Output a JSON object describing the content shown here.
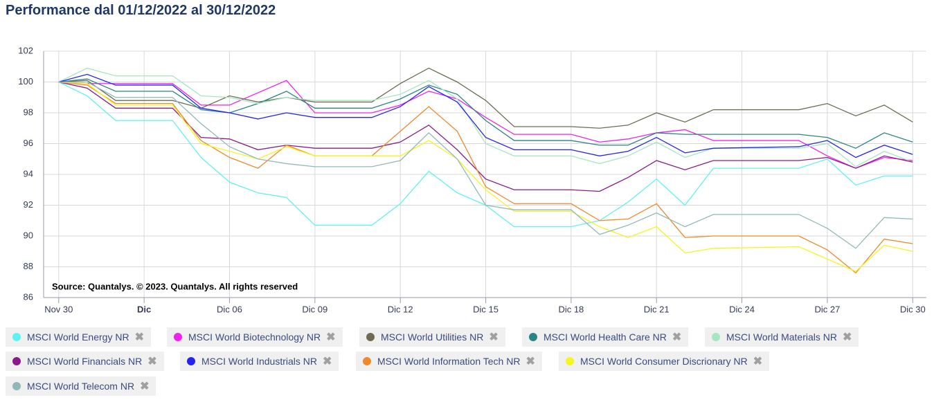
{
  "chart_data": {
    "type": "line",
    "title": "Performance dal 01/12/2022 al 30/12/2022",
    "annotation": "Source: Quantalys. © 2023. Quantalys. All rights reserved",
    "x": [
      0,
      1,
      2,
      4,
      5,
      6,
      7,
      8,
      9,
      11,
      12,
      13,
      14,
      15,
      16,
      18,
      19,
      20,
      21,
      22,
      23,
      26,
      27,
      28,
      29,
      30
    ],
    "xlim": [
      -0.53,
      30.48
    ],
    "xticks": [
      {
        "value": 0,
        "label": "Nov 30"
      },
      {
        "value": 3,
        "label": "Dic"
      },
      {
        "value": 6,
        "label": "Dic 06"
      },
      {
        "value": 9,
        "label": "Dic 09"
      },
      {
        "value": 12,
        "label": "Dic 12"
      },
      {
        "value": 15,
        "label": "Dic 15"
      },
      {
        "value": 18,
        "label": "Dic 18"
      },
      {
        "value": 21,
        "label": "Dic 21"
      },
      {
        "value": 24,
        "label": "Dic 24"
      },
      {
        "value": 27,
        "label": "Dic 27"
      },
      {
        "value": 30,
        "label": "Dic 30"
      }
    ],
    "ylim": [
      86,
      102
    ],
    "yticks": [
      86,
      88,
      90,
      92,
      94,
      96,
      98,
      100,
      102
    ],
    "grid": true,
    "series": [
      {
        "name": "MSCI World Energy NR",
        "color": "#5ff2f2",
        "values": [
          100,
          99.1,
          97.5,
          97.5,
          95.1,
          93.5,
          92.8,
          92.5,
          90.7,
          90.7,
          92.1,
          94.2,
          92.8,
          92.0,
          90.6,
          90.6,
          91.0,
          92.2,
          93.7,
          92.0,
          94.4,
          94.4,
          95.0,
          93.3,
          93.9,
          93.9
        ]
      },
      {
        "name": "MSCI World Biotechnology NR",
        "color": "#f020f0",
        "values": [
          100,
          99.9,
          99.9,
          99.9,
          98.5,
          98.5,
          99.3,
          100.1,
          98.0,
          98.0,
          98.5,
          99.4,
          98.9,
          97.7,
          96.6,
          96.6,
          96.1,
          96.3,
          96.7,
          96.9,
          96.2,
          96.2,
          95.2,
          94.4,
          95.1,
          94.9
        ]
      },
      {
        "name": "MSCI World Utilities NR",
        "color": "#6e6b52",
        "values": [
          100,
          100.1,
          98.8,
          98.8,
          98.3,
          99.1,
          98.7,
          99.0,
          98.7,
          98.7,
          99.9,
          100.9,
          100.0,
          98.8,
          97.1,
          97.1,
          97.0,
          97.2,
          98.0,
          97.4,
          98.2,
          98.2,
          98.6,
          97.8,
          98.5,
          97.4
        ]
      },
      {
        "name": "MSCI World Health Care NR",
        "color": "#2a8585",
        "values": [
          100,
          100.2,
          99.4,
          99.4,
          98.2,
          98.0,
          98.6,
          99.4,
          98.3,
          98.3,
          98.9,
          99.8,
          99.2,
          97.5,
          96.2,
          96.2,
          95.9,
          95.9,
          96.7,
          96.6,
          96.6,
          96.6,
          96.4,
          95.7,
          96.7,
          96.1
        ]
      },
      {
        "name": "MSCI World Materials NR",
        "color": "#a6e6c2",
        "values": [
          100,
          100.9,
          100.4,
          100.4,
          99.1,
          99.0,
          98.6,
          99.0,
          98.8,
          98.8,
          99.2,
          100.1,
          98.9,
          96.0,
          95.2,
          95.2,
          94.7,
          95.2,
          96.1,
          95.1,
          95.7,
          95.7,
          96.0,
          94.5,
          95.5,
          94.8
        ]
      },
      {
        "name": "MSCI World Financials NR",
        "color": "#8a1a8a",
        "values": [
          100,
          99.6,
          98.3,
          98.3,
          96.4,
          96.3,
          95.6,
          95.9,
          95.7,
          95.7,
          96.1,
          97.2,
          95.6,
          93.7,
          93.0,
          93.0,
          92.9,
          93.8,
          94.9,
          94.3,
          94.9,
          94.9,
          95.1,
          94.4,
          95.2,
          94.8
        ]
      },
      {
        "name": "MSCI World Industrials NR",
        "color": "#2424ee",
        "values": [
          100,
          100.5,
          99.8,
          99.8,
          98.3,
          98.0,
          97.6,
          98.0,
          97.7,
          97.7,
          98.4,
          99.7,
          98.7,
          96.4,
          95.6,
          95.6,
          95.2,
          95.5,
          96.4,
          95.4,
          95.7,
          95.8,
          96.2,
          95.1,
          95.9,
          95.3
        ]
      },
      {
        "name": "MSCI World Information Tech NR",
        "color": "#f0882c",
        "values": [
          100,
          99.8,
          98.6,
          98.6,
          96.2,
          95.1,
          94.4,
          95.9,
          95.2,
          95.2,
          96.8,
          98.4,
          96.8,
          93.2,
          92.1,
          92.1,
          91.0,
          91.1,
          92.1,
          89.9,
          90.0,
          90.0,
          89.1,
          87.6,
          89.8,
          89.5
        ]
      },
      {
        "name": "MSCI World Consumer Discrionary NR",
        "color": "#f5f520",
        "values": [
          100,
          99.9,
          98.5,
          98.5,
          96.0,
          95.5,
          95.0,
          95.8,
          95.2,
          95.2,
          95.2,
          96.2,
          95.0,
          93.0,
          91.6,
          91.6,
          90.6,
          89.9,
          90.6,
          88.9,
          89.2,
          89.3,
          88.5,
          87.7,
          89.4,
          89.0
        ]
      },
      {
        "name": "MSCI World Telecom NR",
        "color": "#92b8b8",
        "values": [
          100,
          100.0,
          99.0,
          99.0,
          97.3,
          95.8,
          95.0,
          94.7,
          94.5,
          94.5,
          94.9,
          96.7,
          95.0,
          92.0,
          91.7,
          91.7,
          90.1,
          90.7,
          91.5,
          90.6,
          91.4,
          91.4,
          90.5,
          89.2,
          91.2,
          91.1
        ]
      }
    ]
  }
}
